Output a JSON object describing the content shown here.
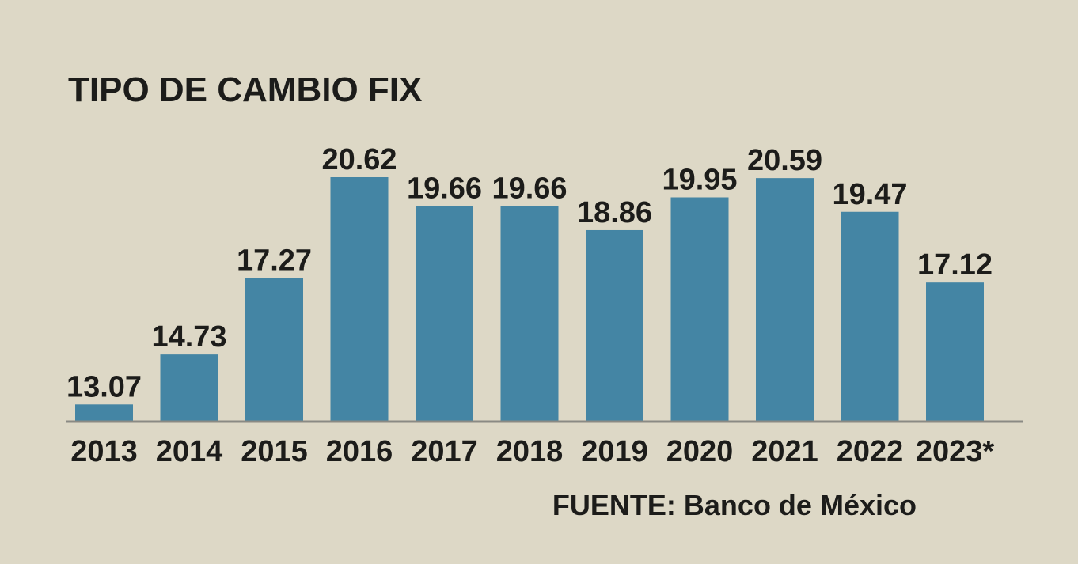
{
  "colors": {
    "background": "#ddd8c6",
    "bar": "#4485a4",
    "text": "#1c1c1a",
    "axis": "#8a8a84"
  },
  "chart_data": {
    "type": "bar",
    "title": "TIPO DE CAMBIO FIX",
    "source": "FUENTE: Banco de México",
    "categories": [
      "2013",
      "2014",
      "2015",
      "2016",
      "2017",
      "2018",
      "2019",
      "2020",
      "2021",
      "2022",
      "2023*"
    ],
    "values": [
      13.07,
      14.73,
      17.27,
      20.62,
      19.66,
      19.66,
      18.86,
      19.95,
      20.59,
      19.47,
      17.12
    ],
    "value_labels": [
      "13.07",
      "14.73",
      "17.27",
      "20.62",
      "19.66",
      "19.66",
      "18.86",
      "19.95",
      "20.59",
      "19.47",
      "17.12"
    ],
    "xlabel": "",
    "ylabel": "",
    "ylim": [
      12.5,
      20.9
    ],
    "grid": false,
    "legend": "none"
  }
}
